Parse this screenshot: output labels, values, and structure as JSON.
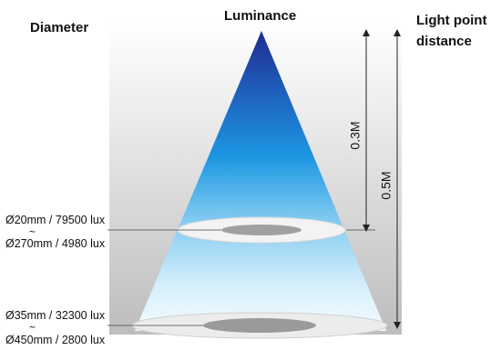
{
  "header": {
    "diameter": "Diameter",
    "luminance": "Luminance",
    "light_point_line1": "Light point",
    "light_point_line2": "distance"
  },
  "measurements": [
    {
      "distance": "0.3M",
      "top_spec": "Ø20mm / 79500 lux",
      "separator": "~",
      "bottom_spec": "Ø270mm / 4980 lux"
    },
    {
      "distance": "0.5M",
      "top_spec": "Ø35mm / 32300 lux",
      "separator": "~",
      "bottom_spec": "Ø450mm / 2800 lux"
    }
  ],
  "colors": {
    "beam_top": "#1a2a8c",
    "beam_mid": "#1e90e0",
    "beam_bottom": "#e8f6fc",
    "panel": "#c9c9c9",
    "ring": "#f2f2f2",
    "ring_center": "#9a9a9a"
  }
}
